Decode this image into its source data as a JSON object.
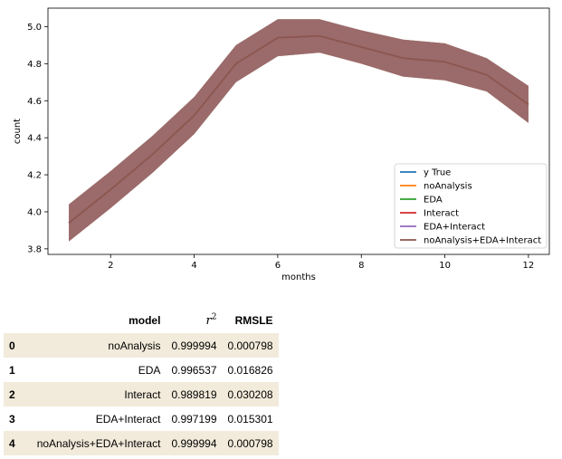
{
  "chart_data": {
    "type": "line",
    "xlabel": "months",
    "ylabel": "count",
    "xlim": [
      0.5,
      12.5
    ],
    "ylim": [
      3.77,
      5.1
    ],
    "xticks": [
      2,
      4,
      6,
      8,
      10,
      12
    ],
    "yticks": [
      "3.8",
      "4.0",
      "4.2",
      "4.4",
      "4.6",
      "4.8",
      "5.0"
    ],
    "x": [
      1,
      2,
      3,
      4,
      5,
      6,
      7,
      8,
      9,
      10,
      11,
      12
    ],
    "series": [
      {
        "name": "y True",
        "color": "#1f77b4",
        "values": [
          3.94,
          4.12,
          4.31,
          4.52,
          4.8,
          4.94,
          4.95,
          4.89,
          4.83,
          4.81,
          4.74,
          4.58
        ],
        "band": [
          0.1,
          0.1,
          0.1,
          0.1,
          0.1,
          0.1,
          0.09,
          0.09,
          0.1,
          0.1,
          0.09,
          0.1
        ]
      },
      {
        "name": "noAnalysis",
        "color": "#ff7f0e",
        "values": [
          3.94,
          4.12,
          4.31,
          4.52,
          4.8,
          4.94,
          4.95,
          4.89,
          4.83,
          4.81,
          4.74,
          4.58
        ],
        "band": [
          0.1,
          0.1,
          0.1,
          0.1,
          0.1,
          0.1,
          0.09,
          0.09,
          0.1,
          0.1,
          0.09,
          0.1
        ]
      },
      {
        "name": "EDA",
        "color": "#2ca02c",
        "values": [
          3.94,
          4.12,
          4.31,
          4.52,
          4.8,
          4.94,
          4.95,
          4.89,
          4.83,
          4.81,
          4.74,
          4.58
        ],
        "band": [
          0.1,
          0.1,
          0.1,
          0.1,
          0.1,
          0.1,
          0.09,
          0.09,
          0.1,
          0.1,
          0.09,
          0.1
        ]
      },
      {
        "name": "Interact",
        "color": "#d62728",
        "values": [
          3.94,
          4.12,
          4.31,
          4.52,
          4.8,
          4.94,
          4.95,
          4.89,
          4.83,
          4.81,
          4.74,
          4.58
        ],
        "band": [
          0.1,
          0.1,
          0.1,
          0.1,
          0.1,
          0.1,
          0.09,
          0.09,
          0.1,
          0.1,
          0.09,
          0.1
        ]
      },
      {
        "name": "EDA+Interact",
        "color": "#9467bd",
        "values": [
          3.94,
          4.12,
          4.31,
          4.52,
          4.8,
          4.94,
          4.95,
          4.89,
          4.83,
          4.81,
          4.74,
          4.58
        ],
        "band": [
          0.1,
          0.1,
          0.1,
          0.1,
          0.1,
          0.1,
          0.09,
          0.09,
          0.1,
          0.1,
          0.09,
          0.1
        ]
      },
      {
        "name": "noAnalysis+EDA+Interact",
        "color": "#8c564b",
        "values": [
          3.94,
          4.12,
          4.31,
          4.52,
          4.8,
          4.94,
          4.95,
          4.89,
          4.83,
          4.81,
          4.74,
          4.58
        ],
        "band": [
          0.1,
          0.1,
          0.1,
          0.1,
          0.1,
          0.1,
          0.09,
          0.09,
          0.1,
          0.1,
          0.09,
          0.1
        ]
      }
    ],
    "legend_position": "lower-right",
    "grid": false
  },
  "table": {
    "columns": [
      "model",
      "r",
      "RMSLE"
    ],
    "r2_exponent": "2",
    "rows": [
      {
        "index": "0",
        "model": "noAnalysis",
        "r2": "0.999994",
        "rmsle": "0.000798"
      },
      {
        "index": "1",
        "model": "EDA",
        "r2": "0.996537",
        "rmsle": "0.016826"
      },
      {
        "index": "2",
        "model": "Interact",
        "r2": "0.989819",
        "rmsle": "0.030208"
      },
      {
        "index": "3",
        "model": "EDA+Interact",
        "r2": "0.997199",
        "rmsle": "0.015301"
      },
      {
        "index": "4",
        "model": "noAnalysis+EDA+Interact",
        "r2": "0.999994",
        "rmsle": "0.000798"
      }
    ]
  }
}
